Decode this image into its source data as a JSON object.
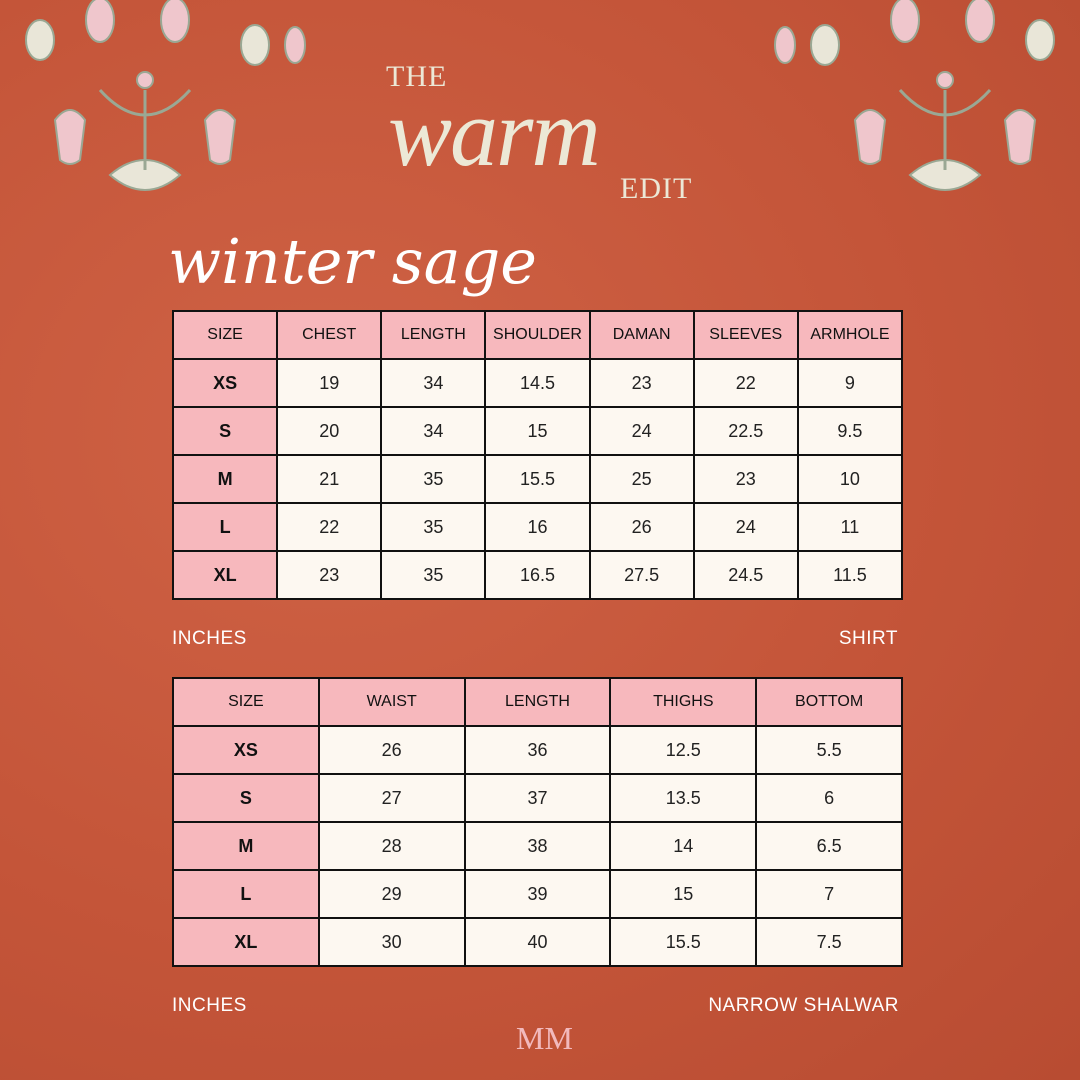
{
  "header": {
    "the": "THE",
    "warm": "warm",
    "edit": "EDIT"
  },
  "subtitle": "winter sage",
  "shirt": {
    "headers": [
      "SIZE",
      "CHEST",
      "LENGTH",
      "SHOULDER",
      "DAMAN",
      "SLEEVES",
      "ARMHOLE"
    ],
    "rows": [
      [
        "XS",
        "19",
        "34",
        "14.5",
        "23",
        "22",
        "9"
      ],
      [
        "S",
        "20",
        "34",
        "15",
        "24",
        "22.5",
        "9.5"
      ],
      [
        "M",
        "21",
        "35",
        "15.5",
        "25",
        "23",
        "10"
      ],
      [
        "L",
        "22",
        "35",
        "16",
        "26",
        "24",
        "11"
      ],
      [
        "XL",
        "23",
        "35",
        "16.5",
        "27.5",
        "24.5",
        "11.5"
      ]
    ],
    "unit": "INCHES",
    "label": "SHIRT"
  },
  "shalwar": {
    "headers": [
      "SIZE",
      "WAIST",
      "LENGTH",
      "THIGHS",
      "BOTTOM"
    ],
    "rows": [
      [
        "XS",
        "26",
        "36",
        "12.5",
        "5.5"
      ],
      [
        "S",
        "27",
        "37",
        "13.5",
        "6"
      ],
      [
        "M",
        "28",
        "38",
        "14",
        "6.5"
      ],
      [
        "L",
        "29",
        "39",
        "15",
        "7"
      ],
      [
        "XL",
        "30",
        "40",
        "15.5",
        "7.5"
      ]
    ],
    "unit": "INCHES",
    "label": "NARROW SHALWAR"
  },
  "logo": "MM",
  "colors": {
    "background": "#c45539",
    "header_cell": "#f7b8bd",
    "body_cell": "#fdf8f1",
    "title": "#ece8d6"
  }
}
